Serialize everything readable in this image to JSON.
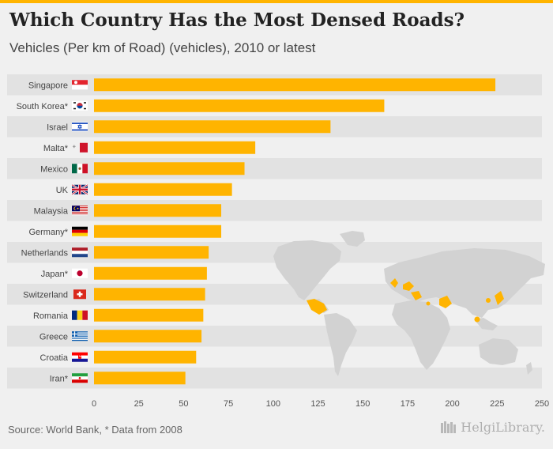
{
  "header": {
    "title": "Which Country Has the Most Densed Roads?",
    "subtitle": "Vehicles (Per km of Road) (vehicles), 2010 or latest"
  },
  "footer": {
    "source": "Source: World Bank, * Data from 2008",
    "logo_text": "HelgiLibrary."
  },
  "colors": {
    "bar": "#ffb400",
    "row_band": "#e2e2e2",
    "map_land": "#d2d2d2",
    "map_highlight": "#ffb400",
    "accent": "#ffb400"
  },
  "chart_data": {
    "type": "bar",
    "orientation": "horizontal",
    "title": "Which Country Has the Most Densed Roads?",
    "subtitle": "Vehicles (Per km of Road) (vehicles), 2010 or latest",
    "xlabel": "",
    "ylabel": "",
    "xlim": [
      0,
      250
    ],
    "ticks": [
      0,
      25,
      50,
      75,
      100,
      125,
      150,
      175,
      200,
      225,
      250
    ],
    "categories": [
      "Singapore",
      "South Korea*",
      "Israel",
      "Malta*",
      "Mexico",
      "UK",
      "Malaysia",
      "Germany*",
      "Netherlands",
      "Japan*",
      "Switzerland",
      "Romania",
      "Greece",
      "Croatia",
      "Iran*"
    ],
    "values": [
      224,
      162,
      132,
      90,
      84,
      77,
      71,
      71,
      64,
      63,
      62,
      61,
      60,
      57,
      51
    ],
    "flags": [
      "singapore-flag",
      "south-korea-flag",
      "israel-flag",
      "malta-flag",
      "mexico-flag",
      "uk-flag",
      "malaysia-flag",
      "germany-flag",
      "netherlands-flag",
      "japan-flag",
      "switzerland-flag",
      "romania-flag",
      "greece-flag",
      "croatia-flag",
      "iran-flag"
    ]
  }
}
